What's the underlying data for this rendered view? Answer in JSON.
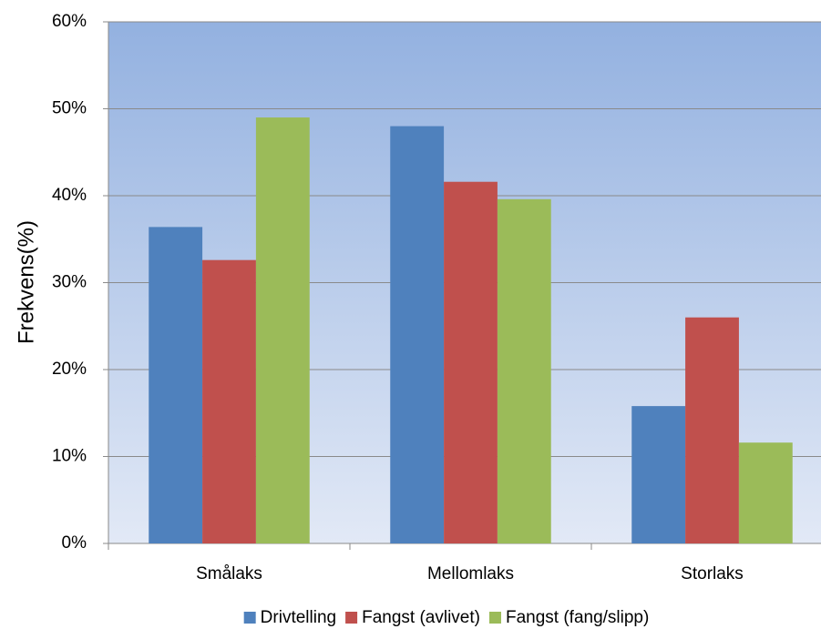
{
  "chart_data": {
    "type": "bar",
    "y_label": "Frekvens(%)",
    "categories": [
      "Smålaks",
      "Mellomlaks",
      "Storlaks"
    ],
    "series": [
      {
        "name": "Drivtelling",
        "color": "#4f81bd",
        "values": [
          36.4,
          48.0,
          15.8
        ]
      },
      {
        "name": "Fangst (avlivet)",
        "color": "#c0504d",
        "values": [
          32.6,
          41.6,
          26.0
        ]
      },
      {
        "name": "Fangst (fang/slipp)",
        "color": "#9bbb59",
        "values": [
          49.0,
          39.6,
          11.6
        ]
      }
    ],
    "ylim": [
      0,
      60
    ],
    "yticks": [
      {
        "value": 0,
        "label": "0%"
      },
      {
        "value": 10,
        "label": "10%"
      },
      {
        "value": 20,
        "label": "20%"
      },
      {
        "value": 30,
        "label": "30%"
      },
      {
        "value": 40,
        "label": "40%"
      },
      {
        "value": 50,
        "label": "50%"
      },
      {
        "value": 60,
        "label": "60%"
      }
    ],
    "grid": true,
    "legend": "bottom"
  }
}
